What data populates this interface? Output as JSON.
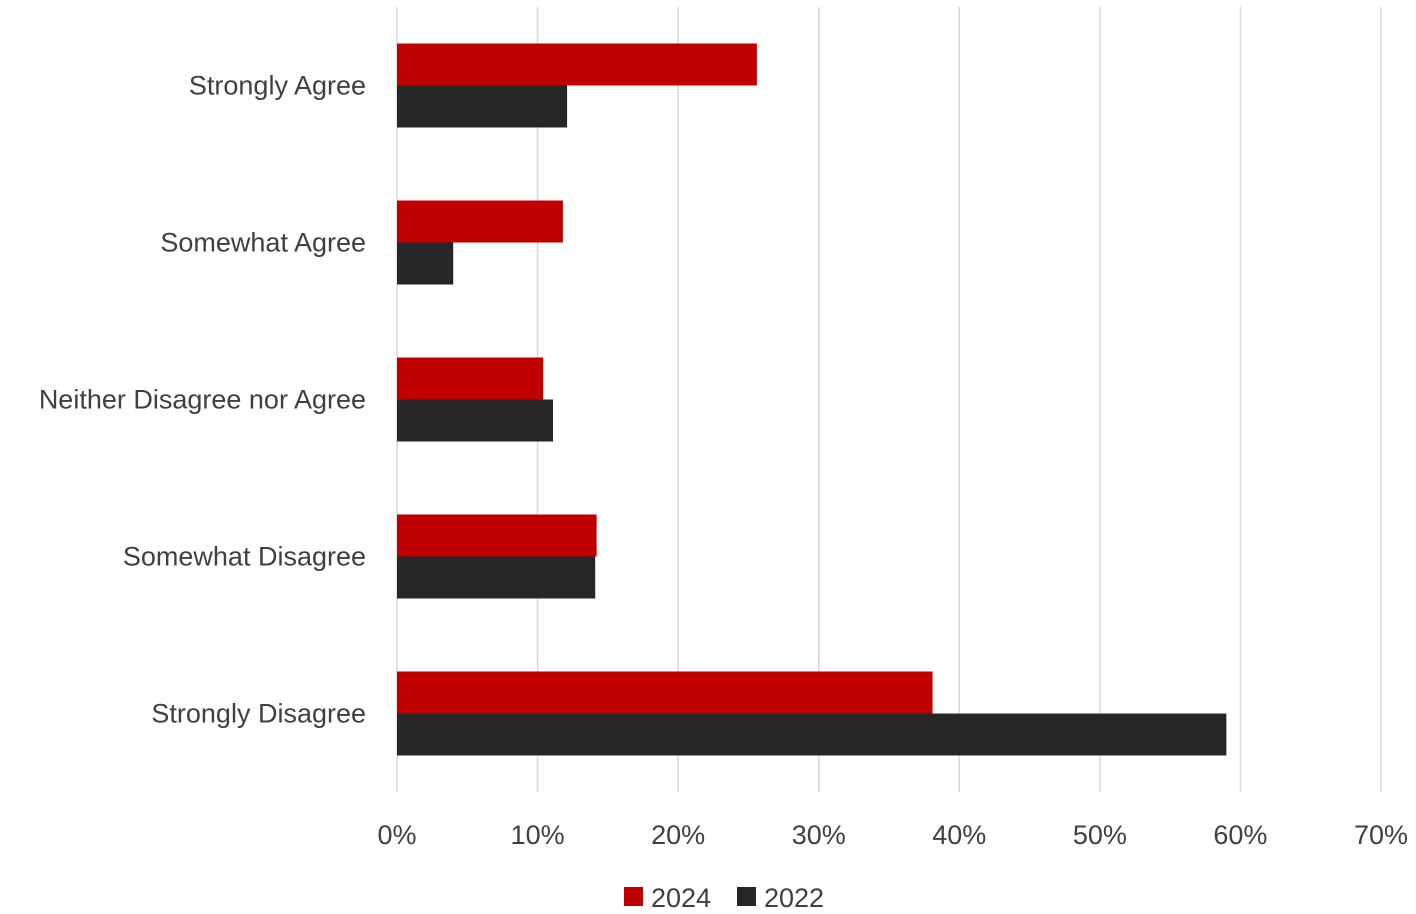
{
  "chart_data": {
    "type": "bar",
    "orientation": "horizontal",
    "categories": [
      "Strongly Agree",
      "Somewhat Agree",
      "Neither Disagree nor Agree",
      "Somewhat Disagree",
      "Strongly Disagree"
    ],
    "series": [
      {
        "name": "2024",
        "color": "#c00000",
        "values": [
          25.6,
          11.8,
          10.4,
          14.2,
          38.1
        ]
      },
      {
        "name": "2022",
        "color": "#262626",
        "values": [
          12.1,
          4.0,
          11.1,
          14.1,
          59.0
        ]
      }
    ],
    "xlim": [
      0,
      70
    ],
    "xticks": [
      0,
      10,
      20,
      30,
      40,
      50,
      60,
      70
    ],
    "tick_format": "percent",
    "grid": true,
    "legend_position": "bottom-center"
  }
}
